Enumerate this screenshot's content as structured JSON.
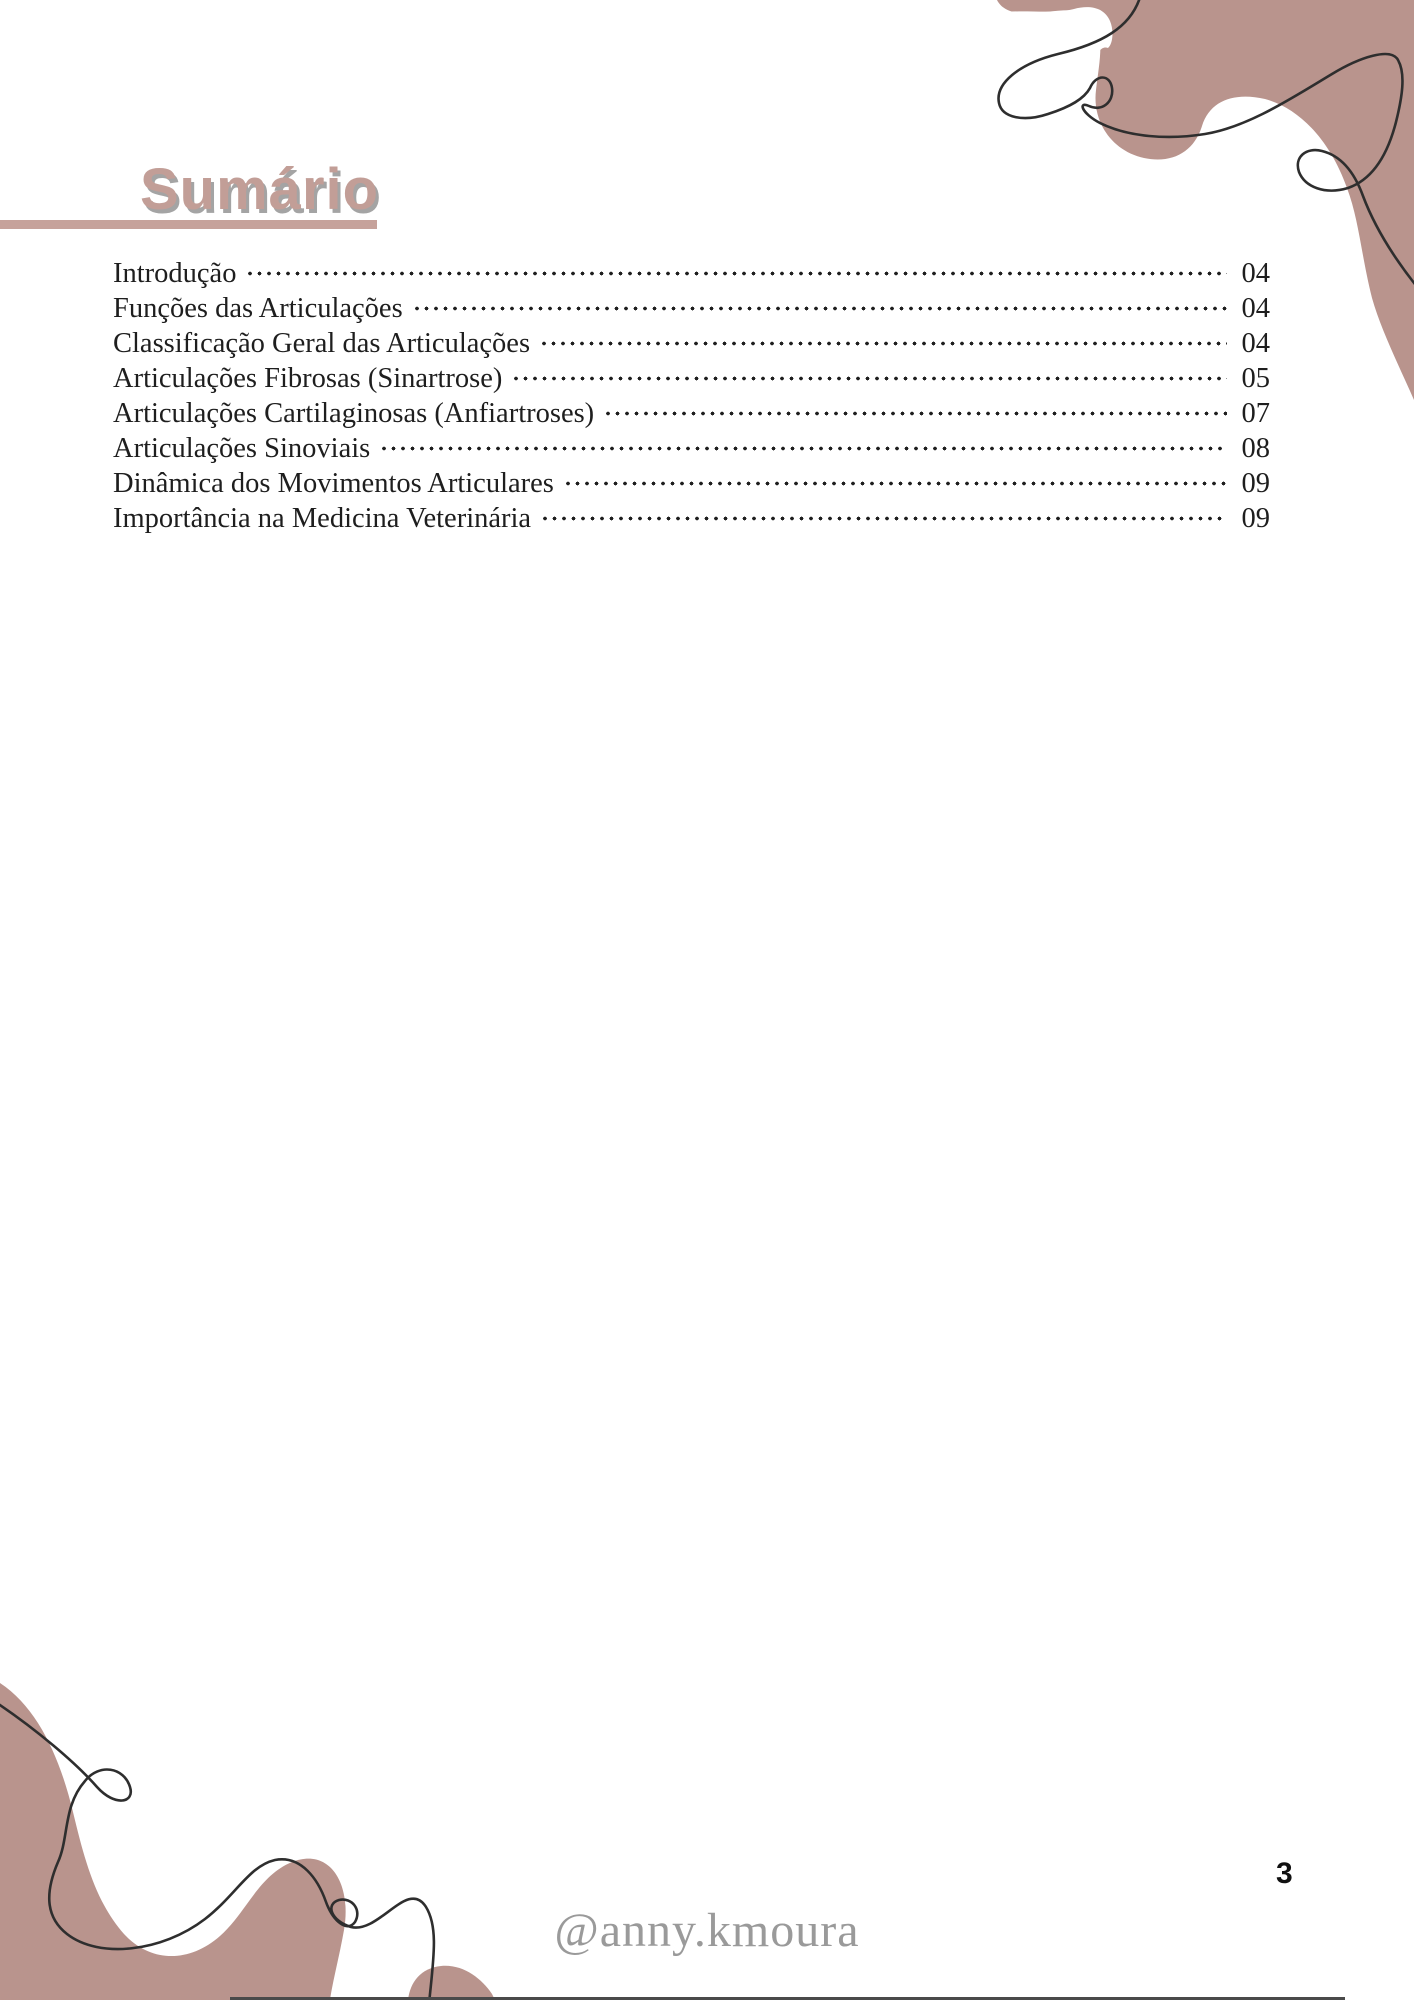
{
  "page": {
    "title": "Sumário",
    "page_number": "3",
    "watermark": "@anny.kmoura"
  },
  "toc": {
    "entries": [
      {
        "label": "Introdução",
        "page": "04"
      },
      {
        "label": "Funções das Articulações",
        "page": "04"
      },
      {
        "label": "Classificação Geral das Articulações",
        "page": "04"
      },
      {
        "label": "Articulações Fibrosas (Sinartrose)",
        "page": "05"
      },
      {
        "label": "Articulações Cartilaginosas (Anfiartroses)",
        "page": "07"
      },
      {
        "label": "Articulações Sinoviais",
        "page": "08"
      },
      {
        "label": "Dinâmica dos Movimentos Articulares",
        "page": "09"
      },
      {
        "label": "Importância na Medicina Veterinária",
        "page": "09"
      }
    ]
  },
  "colors": {
    "accent_rose": "#c29e97",
    "blob_mauve": "#b9948d",
    "title_shadow_gray": "#a4a4a4",
    "toc_text": "#1e1e1e",
    "watermark_gray": "#9a9a9a",
    "line_art": "#2e2e2e",
    "bottom_edge": "#4a4a4a"
  }
}
